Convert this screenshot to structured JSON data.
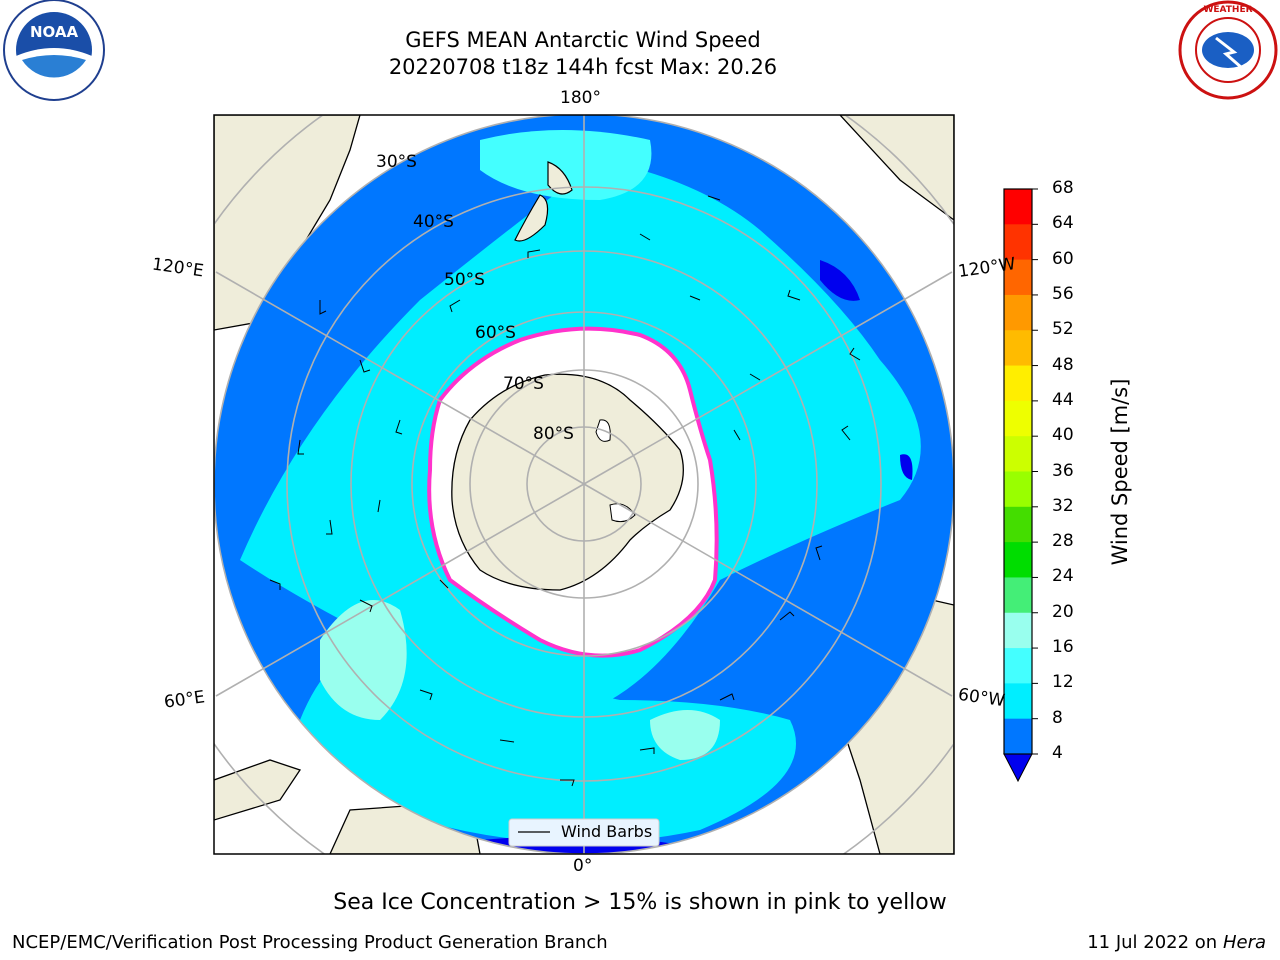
{
  "header": {
    "title": "GEFS MEAN Antarctic Wind Speed",
    "subtitle": "20220708 t18z 144h fcst   Max: 20.26"
  },
  "logos": {
    "left": "NOAA",
    "right": "NATIONAL WEATHER SERVICE"
  },
  "map": {
    "longitude_labels": {
      "top": "180°",
      "bottom": "0°",
      "upper_left": "120°E",
      "upper_right": "120°W",
      "lower_left": "60°E",
      "lower_right": "60°W"
    },
    "latitude_labels": [
      "30°S",
      "40°S",
      "50°S",
      "60°S",
      "70°S",
      "80°S"
    ],
    "legend_label": "Wind Barbs"
  },
  "colorbar": {
    "label": "Wind Speed [m/s]",
    "ticks": [
      "68",
      "64",
      "60",
      "56",
      "52",
      "48",
      "44",
      "40",
      "36",
      "32",
      "28",
      "24",
      "20",
      "16",
      "12",
      "8",
      "4"
    ],
    "colors": [
      "#ff0000",
      "#ff3300",
      "#ff6600",
      "#ff9900",
      "#ffbb00",
      "#ffee00",
      "#eeff00",
      "#ccff00",
      "#99ff00",
      "#44dd00",
      "#00dd00",
      "#44ee77",
      "#99ffee",
      "#44ffff",
      "#00eeff",
      "#0077ff",
      "#0000ee"
    ],
    "extend_color": "#0000ee"
  },
  "note": "Sea Ice Concentration > 15% is shown in pink to yellow",
  "footer": {
    "left": "NCEP/EMC/Verification Post Processing Product Generation Branch",
    "right_date": "11 Jul 2022 on ",
    "right_host": "Hera"
  }
}
